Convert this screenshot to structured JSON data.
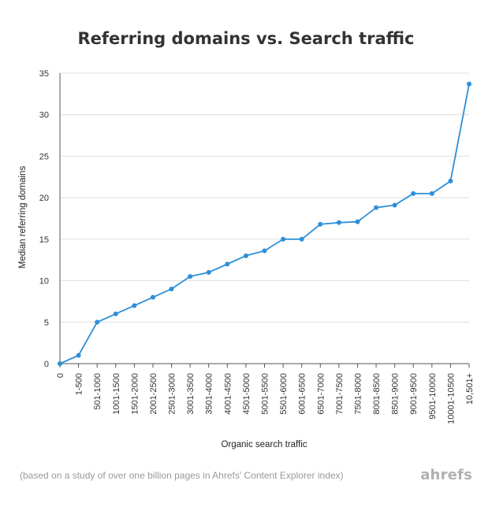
{
  "chart_data": {
    "type": "line",
    "title": "Referring domains vs. Search traffic",
    "xlabel": "Organic search traffic",
    "ylabel": "Median referring domains",
    "ylim": [
      0,
      35
    ],
    "yticks": [
      0,
      5,
      10,
      15,
      20,
      25,
      30,
      35
    ],
    "categories": [
      "0",
      "1-500",
      "501-1000",
      "1001-1500",
      "1501-2000",
      "2001-2500",
      "2501-3000",
      "3001-3500",
      "3501-4000",
      "4001-4500",
      "4501-5000",
      "5001-5500",
      "5501-6000",
      "6001-6500",
      "6501-7000",
      "7001-7500",
      "7501-8000",
      "8001-8500",
      "8501-9000",
      "9001-9500",
      "9501-10000",
      "10001-10500",
      "10,501+"
    ],
    "values": [
      0,
      1,
      5,
      6,
      7,
      8,
      9,
      10.5,
      11,
      12,
      13,
      13.6,
      15,
      15,
      16.8,
      17,
      17.1,
      18.8,
      19.1,
      20.5,
      20.5,
      22,
      33.7
    ],
    "grid": "horizontal",
    "line_color": "#2d8fd8",
    "grid_color": "#dddddd"
  },
  "footnote": "(based on a study of over one billion pages in Ahrefs' Content Explorer index)",
  "brand": "ahrefs"
}
